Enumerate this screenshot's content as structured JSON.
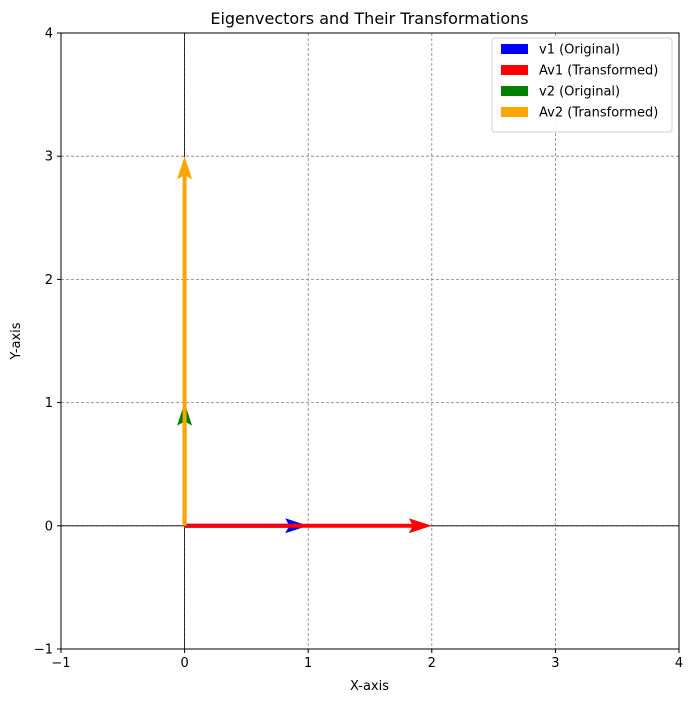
{
  "chart_data": {
    "type": "quiver",
    "title": "Eigenvectors and Their Transformations",
    "xlabel": "X-axis",
    "ylabel": "Y-axis",
    "xlim": [
      -1,
      4
    ],
    "ylim": [
      -1,
      4
    ],
    "xticks": [
      -1,
      0,
      1,
      2,
      3,
      4
    ],
    "yticks": [
      -1,
      0,
      1,
      2,
      3,
      4
    ],
    "xtick_labels": [
      "−1",
      "0",
      "1",
      "2",
      "3",
      "4"
    ],
    "ytick_labels": [
      "−1",
      "0",
      "1",
      "2",
      "3",
      "4"
    ],
    "grid": true,
    "legend_position": "top-right",
    "series": [
      {
        "name": "v1 (Original)",
        "color": "#0000ff",
        "origin": [
          0,
          0
        ],
        "vector": [
          1,
          0
        ]
      },
      {
        "name": "Av1 (Transformed)",
        "color": "#ff0000",
        "origin": [
          0,
          0
        ],
        "vector": [
          2,
          0
        ]
      },
      {
        "name": "v2 (Original)",
        "color": "#008000",
        "origin": [
          0,
          0
        ],
        "vector": [
          0,
          1
        ]
      },
      {
        "name": "Av2 (Transformed)",
        "color": "#ffa500",
        "origin": [
          0,
          0
        ],
        "vector": [
          0,
          3
        ]
      }
    ]
  }
}
